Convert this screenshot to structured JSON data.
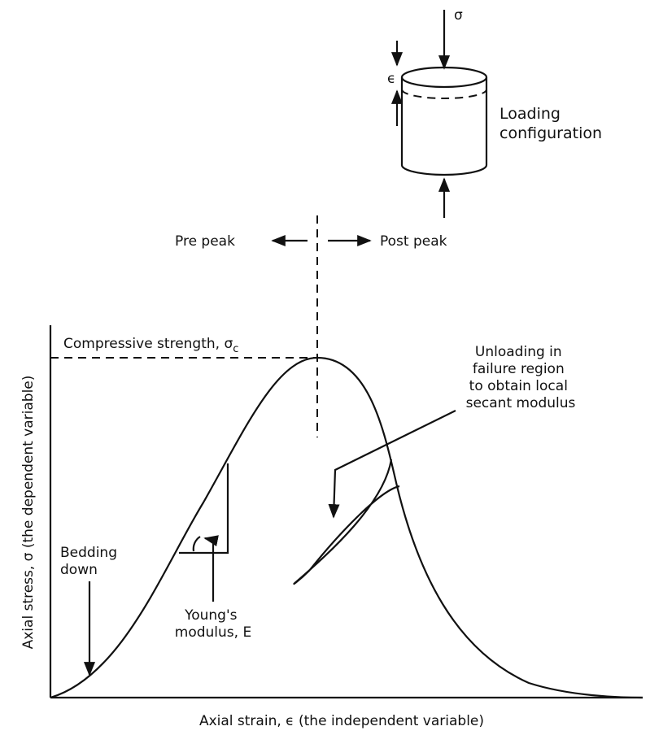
{
  "labels": {
    "sigma_top": "σ",
    "epsilon_cyl": "ϵ",
    "loading": [
      "Loading",
      "configuration"
    ],
    "pre_peak": "Pre peak",
    "post_peak": "Post peak",
    "compressive": "Compressive strength, σ",
    "compressive_sub": "c",
    "unloading": [
      "Unloading in",
      "failure region",
      "to obtain local",
      "secant modulus"
    ],
    "bedding": [
      "Bedding",
      "down"
    ],
    "youngs": [
      "Young's",
      "modulus, E"
    ],
    "y_axis": "Axial stress, σ (the dependent variable)",
    "x_axis": "Axial strain, ϵ (the independent variable)"
  }
}
